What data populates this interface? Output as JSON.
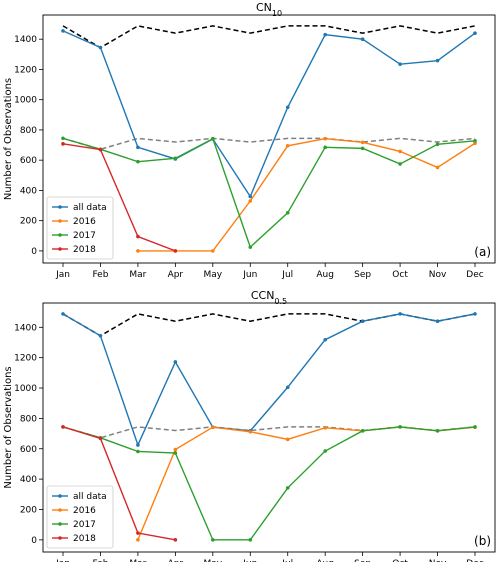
{
  "chart_data": [
    {
      "type": "line",
      "title_main": "CN",
      "title_sub": "10",
      "ylabel": "Number of Observations",
      "panel_label": "(a)",
      "categories": [
        "Jan",
        "Feb",
        "Mar",
        "Apr",
        "May",
        "Jun",
        "Jul",
        "Aug",
        "Sep",
        "Oct",
        "Nov",
        "Dec"
      ],
      "ylim": [
        -80,
        1560
      ],
      "yticks": [
        0,
        200,
        400,
        600,
        800,
        1000,
        1200,
        1400
      ],
      "legend_position": "lower-left",
      "reference_lines": [
        {
          "color": "#000000",
          "values": [
            1488,
            1344,
            1488,
            1440,
            1488,
            1440,
            1488,
            1488,
            1440,
            1488,
            1440,
            1488
          ]
        },
        {
          "color": "#808080",
          "values": [
            744,
            672,
            744,
            720,
            744,
            720,
            744,
            744,
            720,
            744,
            720,
            744
          ]
        }
      ],
      "series": [
        {
          "name": "all data",
          "color": "#1f77b4",
          "values": [
            1455,
            1345,
            685,
            608,
            740,
            360,
            950,
            1430,
            1400,
            1235,
            1258,
            1440
          ]
        },
        {
          "name": "2016",
          "color": "#ff7f0e",
          "values": [
            null,
            null,
            0,
            0,
            0,
            330,
            695,
            742,
            718,
            658,
            552,
            712
          ]
        },
        {
          "name": "2017",
          "color": "#2ca02c",
          "values": [
            745,
            672,
            590,
            612,
            742,
            25,
            252,
            685,
            678,
            575,
            705,
            728
          ]
        },
        {
          "name": "2018",
          "color": "#d62728",
          "values": [
            708,
            670,
            95,
            0,
            null,
            null,
            null,
            null,
            null,
            null,
            null,
            null
          ]
        }
      ]
    },
    {
      "type": "line",
      "title_main": "CCN",
      "title_sub": "0.5",
      "ylabel": "Number of Observations",
      "panel_label": "(b)",
      "categories": [
        "Jan",
        "Feb",
        "Mar",
        "Apr",
        "May",
        "Jun",
        "Jul",
        "Aug",
        "Sep",
        "Oct",
        "Nov",
        "Dec"
      ],
      "ylim": [
        -80,
        1560
      ],
      "yticks": [
        0,
        200,
        400,
        600,
        800,
        1000,
        1200,
        1400
      ],
      "legend_position": "lower-left",
      "reference_lines": [
        {
          "color": "#000000",
          "values": [
            1488,
            1344,
            1488,
            1440,
            1488,
            1440,
            1488,
            1488,
            1440,
            1488,
            1440,
            1488
          ]
        },
        {
          "color": "#808080",
          "values": [
            744,
            672,
            744,
            720,
            744,
            720,
            744,
            744,
            720,
            744,
            720,
            744
          ]
        }
      ],
      "series": [
        {
          "name": "all data",
          "color": "#1f77b4",
          "values": [
            1488,
            1344,
            625,
            1172,
            742,
            718,
            1005,
            1318,
            1440,
            1488,
            1440,
            1488
          ]
        },
        {
          "name": "2016",
          "color": "#ff7f0e",
          "values": [
            null,
            null,
            0,
            595,
            742,
            712,
            662,
            738,
            718,
            744,
            718,
            742
          ]
        },
        {
          "name": "2017",
          "color": "#2ca02c",
          "values": [
            744,
            672,
            582,
            572,
            0,
            0,
            342,
            585,
            718,
            744,
            718,
            744
          ]
        },
        {
          "name": "2018",
          "color": "#d62728",
          "values": [
            744,
            668,
            45,
            0,
            null,
            null,
            null,
            null,
            null,
            null,
            null,
            null
          ]
        }
      ]
    }
  ]
}
